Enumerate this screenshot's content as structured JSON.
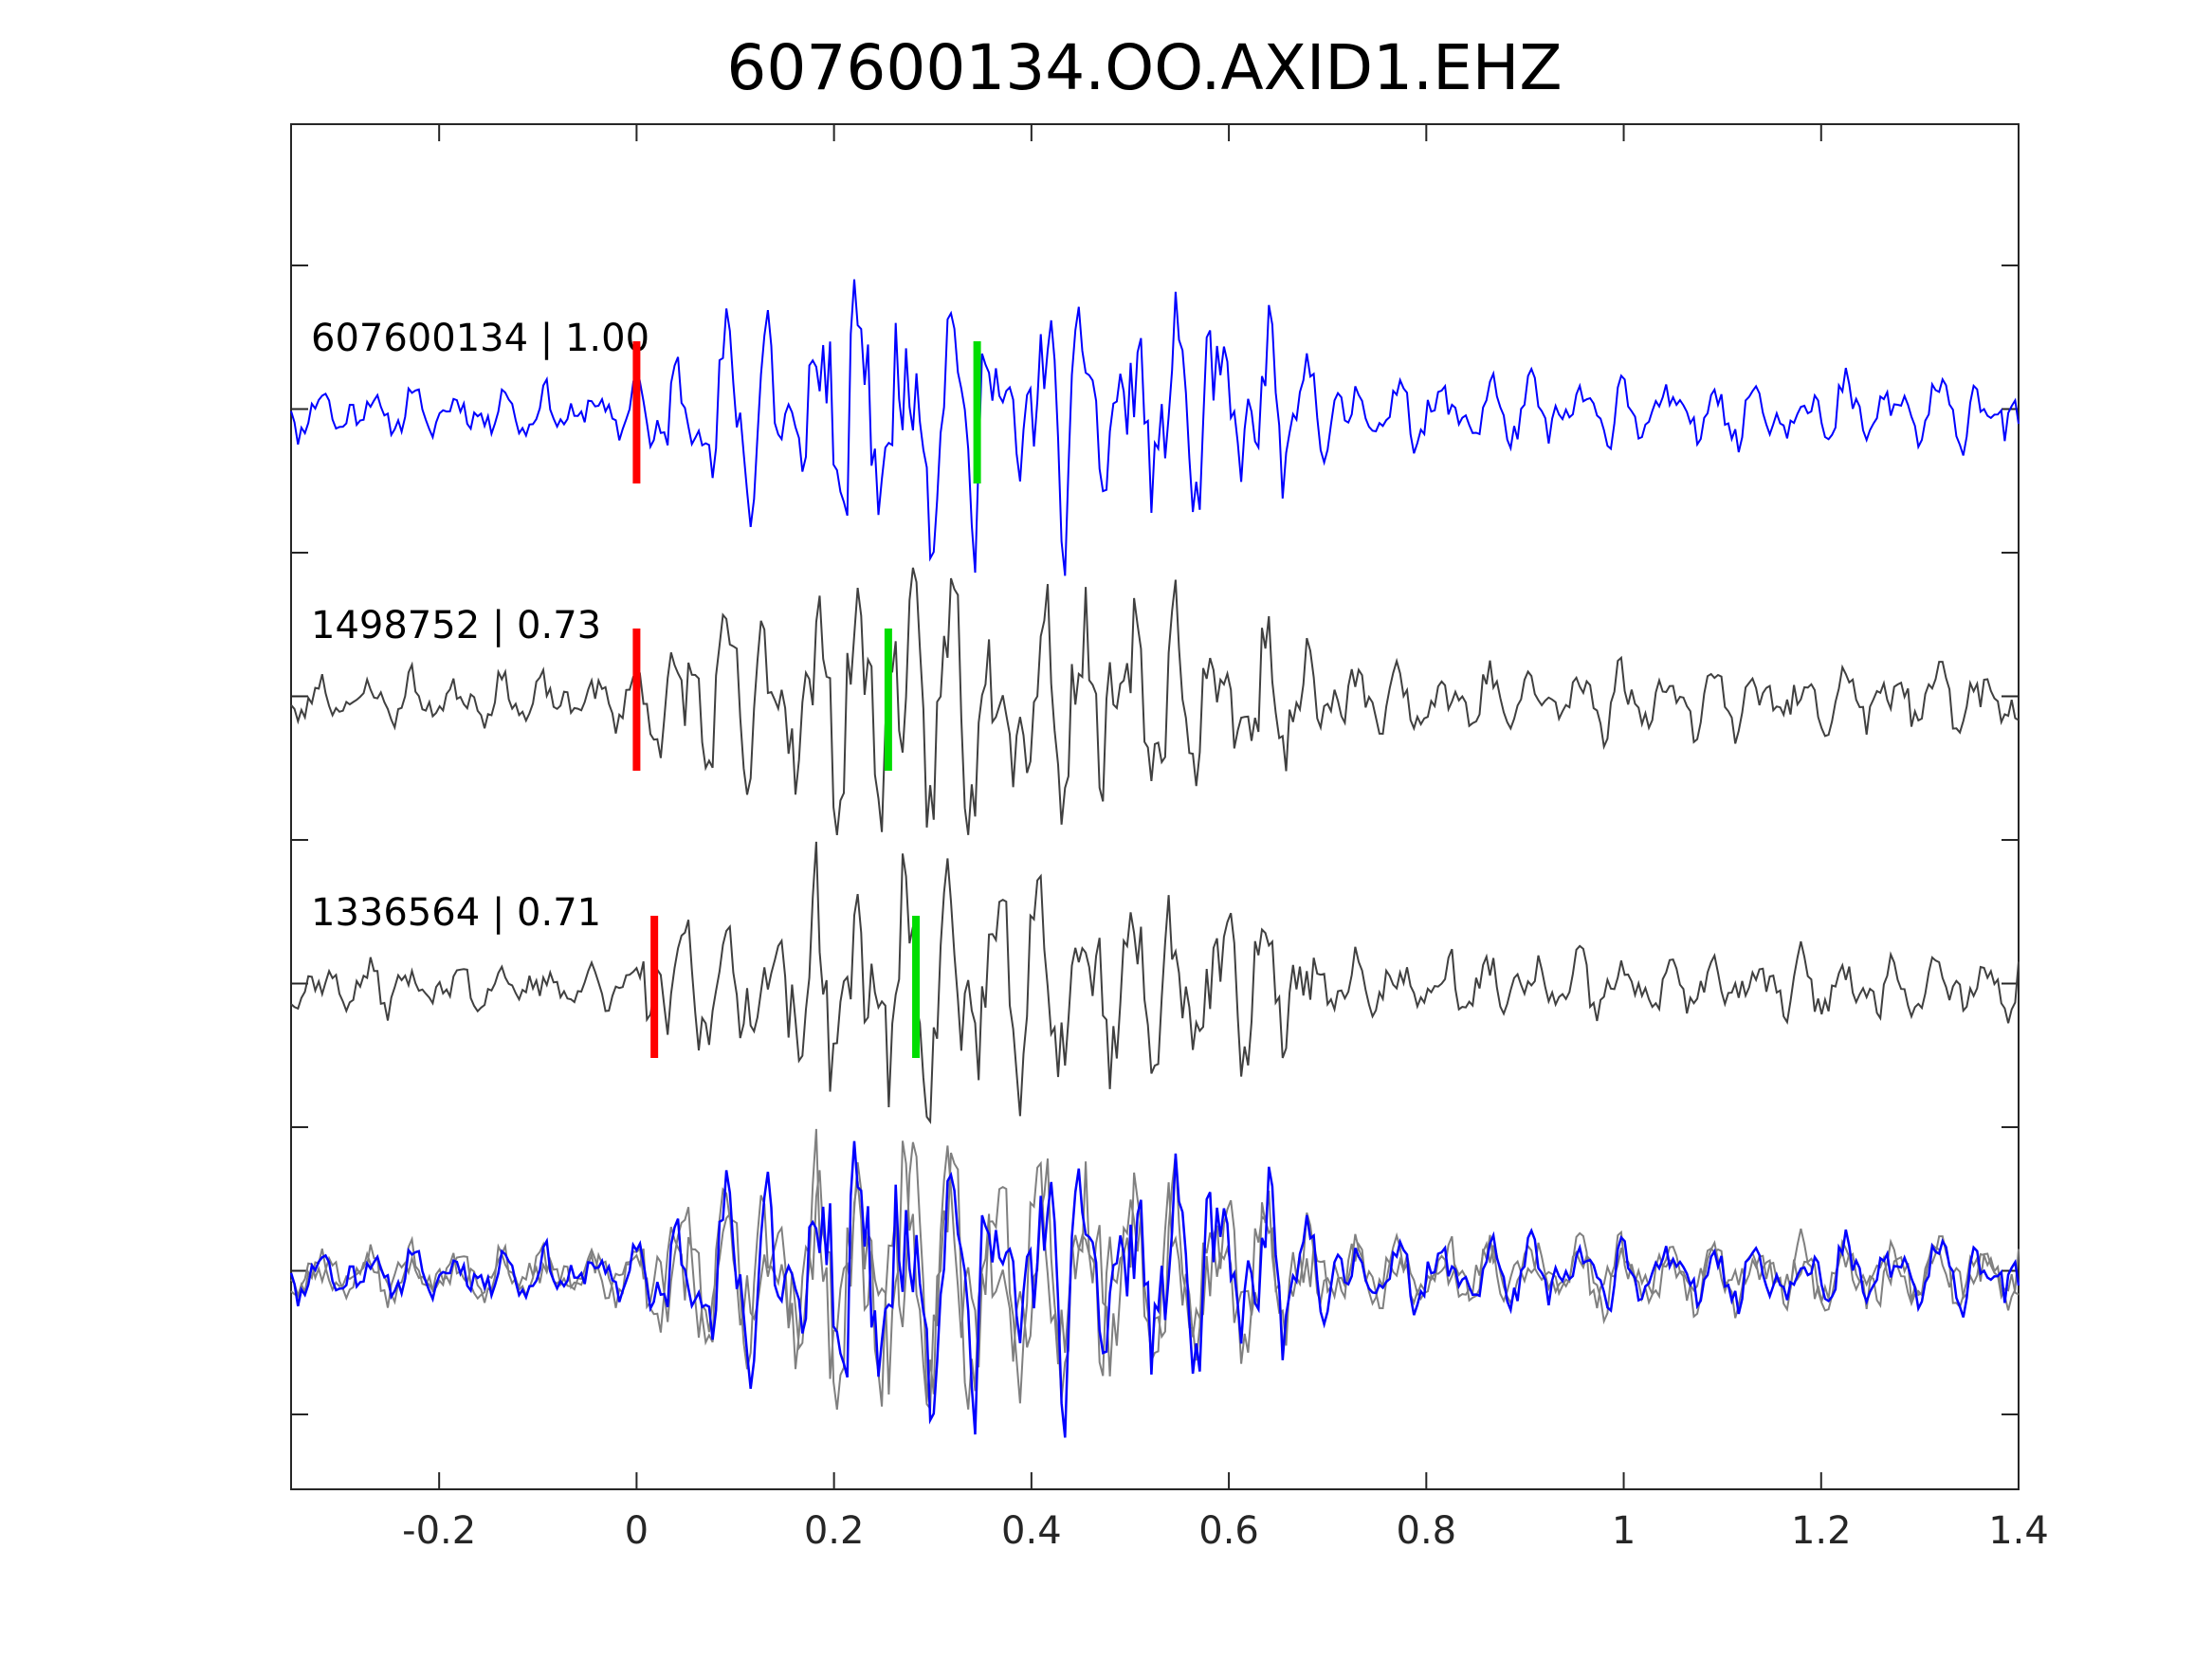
{
  "chart_data": {
    "type": "line",
    "title": "607600134.OO.AXID1.EHZ",
    "xlabel": "",
    "ylabel": "",
    "xlim": [
      -0.35,
      1.4
    ],
    "xticks": [
      -0.2,
      0,
      0.2,
      0.4,
      0.6,
      0.8,
      1,
      1.2,
      1.4
    ],
    "xtick_labels": [
      "-0.2",
      "0",
      "0.2",
      "0.4",
      "0.6",
      "0.8",
      "1",
      "1.2",
      "1.4"
    ],
    "yticks_count": 9,
    "grid": false,
    "traces": [
      {
        "label": "607600134 | 1.00",
        "color": "#0000ff",
        "offset": 0,
        "seed": 11,
        "amp": 1.0,
        "p_pick": 0.0,
        "s_pick": 0.345
      },
      {
        "label": "1498752 | 0.73",
        "color": "#404040",
        "offset": 1,
        "seed": 23,
        "amp": 0.95,
        "p_pick": 0.0,
        "s_pick": 0.255
      },
      {
        "label": "1336564 | 0.71",
        "color": "#404040",
        "offset": 2,
        "seed": 37,
        "amp": 0.9,
        "p_pick": 0.018,
        "s_pick": 0.283
      }
    ],
    "overlay": {
      "offset": 3,
      "series": [
        {
          "name": "",
          "color": "#808080",
          "ref": 1
        },
        {
          "name": "",
          "color": "#808080",
          "ref": 2
        },
        {
          "name": "",
          "color": "#0000ff",
          "ref": 0
        }
      ]
    },
    "pick_colors": {
      "p": "#ff0000",
      "s": "#00dd00"
    }
  }
}
